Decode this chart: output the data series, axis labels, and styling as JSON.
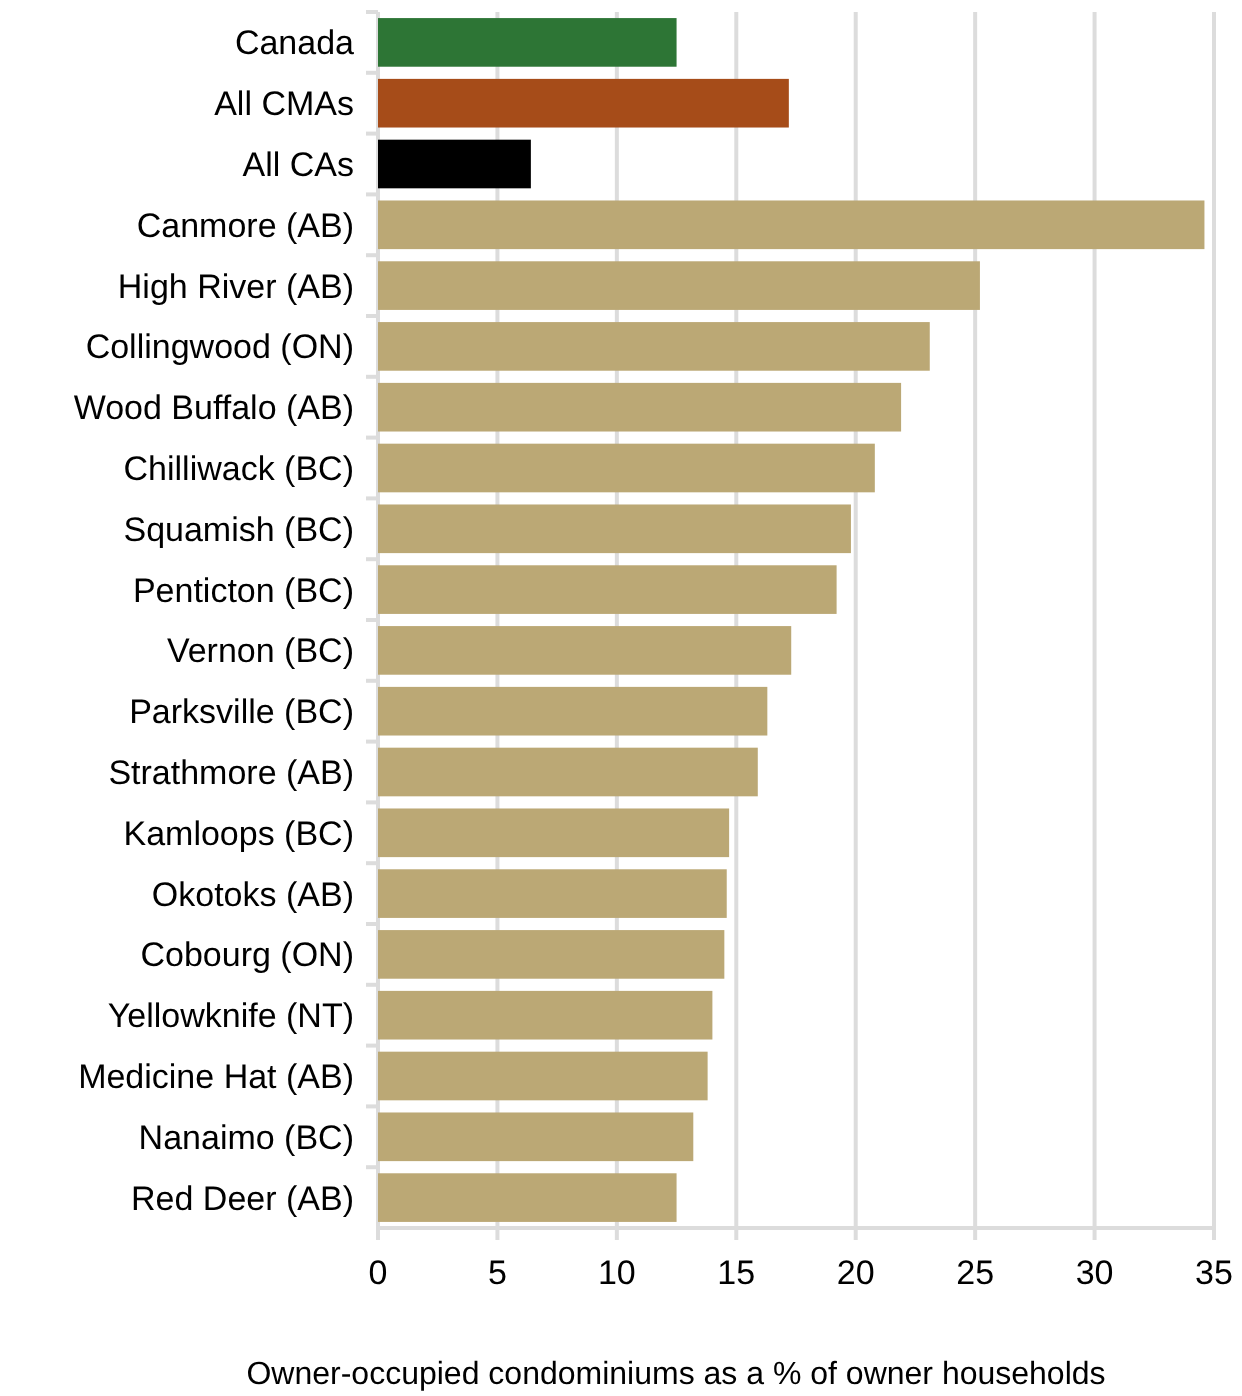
{
  "chart_data": {
    "type": "bar",
    "orientation": "horizontal",
    "xlabel": "Owner-occupied condominiums as a % of owner households",
    "categories": [
      "Canada",
      "All CMAs",
      "All CAs",
      "Canmore (AB)",
      "High River (AB)",
      "Collingwood (ON)",
      "Wood Buffalo (AB)",
      "Chilliwack (BC)",
      "Squamish (BC)",
      "Penticton (BC)",
      "Vernon (BC)",
      "Parksville (BC)",
      "Strathmore (AB)",
      "Kamloops (BC)",
      "Okotoks (AB)",
      "Cobourg (ON)",
      "Yellowknife (NT)",
      "Medicine Hat (AB)",
      "Nanaimo (BC)",
      "Red Deer (AB)"
    ],
    "values": [
      12.5,
      17.2,
      6.4,
      34.6,
      25.2,
      23.1,
      21.9,
      20.8,
      19.8,
      19.2,
      17.3,
      16.3,
      15.9,
      14.7,
      14.6,
      14.5,
      14.0,
      13.8,
      13.2,
      12.5
    ],
    "colors": [
      "#2d7535",
      "#a64c19",
      "#000000",
      "#bba875",
      "#bba875",
      "#bba875",
      "#bba875",
      "#bba875",
      "#bba875",
      "#bba875",
      "#bba875",
      "#bba875",
      "#bba875",
      "#bba875",
      "#bba875",
      "#bba875",
      "#bba875",
      "#bba875",
      "#bba875",
      "#bba875"
    ],
    "xlim": [
      0,
      35
    ],
    "xticks": [
      0,
      5,
      10,
      15,
      20,
      25,
      30,
      35
    ],
    "grid": "x"
  }
}
